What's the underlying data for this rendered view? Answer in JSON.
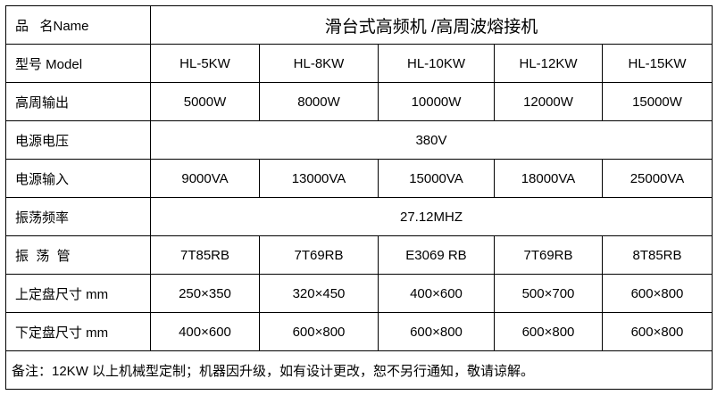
{
  "name_label": "品   名Name",
  "product_name": "滑台式高频机 /高周波熔接机",
  "rows": [
    {
      "label": "型号 Model",
      "values": [
        "HL-5KW",
        "HL-8KW",
        "HL-10KW",
        "HL-12KW",
        "HL-15KW"
      ]
    },
    {
      "label": "高周输出",
      "values": [
        "5000W",
        "8000W",
        "10000W",
        "12000W",
        "15000W"
      ]
    },
    {
      "label": "电源电压",
      "merged": "380V"
    },
    {
      "label": "电源输入",
      "values": [
        "9000VA",
        "13000VA",
        "15000VA",
        "18000VA",
        "25000VA"
      ]
    },
    {
      "label": "振荡频率",
      "merged": "27.12MHZ"
    },
    {
      "label": "振  荡  管",
      "values": [
        "7T85RB",
        "7T69RB",
        "E3069 RB",
        "7T69RB",
        "8T85RB"
      ]
    },
    {
      "label": "上定盘尺寸 mm",
      "values": [
        "250×350",
        "320×450",
        "400×600",
        "500×700",
        "600×800"
      ]
    },
    {
      "label": "下定盘尺寸 mm",
      "values": [
        "400×600",
        "600×800",
        "600×800",
        "600×800",
        "600×800"
      ]
    }
  ],
  "note": "备注：12KW 以上机械型定制；机器因升级，如有设计更改，恕不另行通知，敬请谅解。"
}
